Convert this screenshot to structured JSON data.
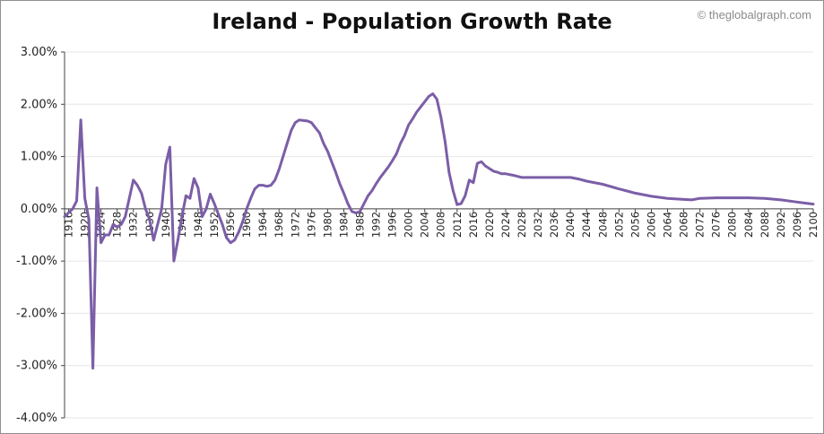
{
  "header": {
    "title": "Ireland - Population Growth Rate",
    "watermark": "© theglobalgraph.com"
  },
  "colors": {
    "line": "#7b5ea7",
    "grid": "#e6e6e6",
    "axis": "#444444",
    "frame": "#8f8f8f"
  },
  "chart_data": {
    "type": "line",
    "title": "Ireland - Population Growth Rate",
    "xlabel": "",
    "ylabel": "",
    "xlim": [
      1915,
      2100
    ],
    "ylim": [
      -4,
      3
    ],
    "grid": true,
    "y_ticks": [
      "3.00%",
      "2.00%",
      "1.00%",
      "0.00%",
      "-1.00%",
      "-2.00%",
      "-3.00%",
      "-4.00%"
    ],
    "x_ticks": [
      "1916",
      "1920",
      "1924",
      "1928",
      "1932",
      "1936",
      "1940",
      "1944",
      "1948",
      "1952",
      "1956",
      "1960",
      "1964",
      "1968",
      "1972",
      "1976",
      "1980",
      "1984",
      "1988",
      "1992",
      "1996",
      "2000",
      "2004",
      "2008",
      "2012",
      "2016",
      "2020",
      "2024",
      "2028",
      "2032",
      "2036",
      "2040",
      "2044",
      "2048",
      "2052",
      "2056",
      "2060",
      "2064",
      "2068",
      "2072",
      "2076",
      "2080",
      "2084",
      "2088",
      "2092",
      "2096",
      "2100"
    ],
    "series": [
      {
        "values": [
          [
            1915,
            -0.15
          ],
          [
            1917,
            0.0
          ],
          [
            1918,
            0.15
          ],
          [
            1919,
            1.7
          ],
          [
            1920,
            0.2
          ],
          [
            1921,
            -0.2
          ],
          [
            1922,
            -3.05
          ],
          [
            1923,
            0.4
          ],
          [
            1924,
            -0.65
          ],
          [
            1925,
            -0.5
          ],
          [
            1926,
            -0.5
          ],
          [
            1927,
            -0.3
          ],
          [
            1928,
            -0.35
          ],
          [
            1929,
            -0.3
          ],
          [
            1930,
            -0.15
          ],
          [
            1931,
            0.2
          ],
          [
            1932,
            0.55
          ],
          [
            1933,
            0.45
          ],
          [
            1934,
            0.3
          ],
          [
            1935,
            0.0
          ],
          [
            1936,
            -0.2
          ],
          [
            1937,
            -0.6
          ],
          [
            1938,
            -0.3
          ],
          [
            1939,
            0.0
          ],
          [
            1940,
            0.85
          ],
          [
            1941,
            1.18
          ],
          [
            1942,
            -1.0
          ],
          [
            1943,
            -0.6
          ],
          [
            1944,
            -0.15
          ],
          [
            1945,
            0.25
          ],
          [
            1946,
            0.2
          ],
          [
            1947,
            0.58
          ],
          [
            1948,
            0.4
          ],
          [
            1949,
            -0.15
          ],
          [
            1950,
            0.0
          ],
          [
            1951,
            0.28
          ],
          [
            1952,
            0.1
          ],
          [
            1953,
            -0.1
          ],
          [
            1954,
            -0.3
          ],
          [
            1955,
            -0.55
          ],
          [
            1956,
            -0.65
          ],
          [
            1957,
            -0.6
          ],
          [
            1958,
            -0.45
          ],
          [
            1959,
            -0.25
          ],
          [
            1960,
            0.0
          ],
          [
            1961,
            0.2
          ],
          [
            1962,
            0.38
          ],
          [
            1963,
            0.45
          ],
          [
            1964,
            0.45
          ],
          [
            1965,
            0.43
          ],
          [
            1966,
            0.45
          ],
          [
            1967,
            0.55
          ],
          [
            1968,
            0.75
          ],
          [
            1969,
            1.0
          ],
          [
            1970,
            1.25
          ],
          [
            1971,
            1.5
          ],
          [
            1972,
            1.65
          ],
          [
            1973,
            1.7
          ],
          [
            1974,
            1.69
          ],
          [
            1975,
            1.68
          ],
          [
            1976,
            1.65
          ],
          [
            1977,
            1.55
          ],
          [
            1978,
            1.45
          ],
          [
            1979,
            1.25
          ],
          [
            1980,
            1.1
          ],
          [
            1981,
            0.9
          ],
          [
            1982,
            0.7
          ],
          [
            1983,
            0.48
          ],
          [
            1984,
            0.3
          ],
          [
            1985,
            0.1
          ],
          [
            1986,
            -0.05
          ],
          [
            1987,
            -0.08
          ],
          [
            1988,
            -0.05
          ],
          [
            1989,
            0.1
          ],
          [
            1990,
            0.25
          ],
          [
            1991,
            0.35
          ],
          [
            1992,
            0.48
          ],
          [
            1993,
            0.6
          ],
          [
            1994,
            0.7
          ],
          [
            1995,
            0.8
          ],
          [
            1996,
            0.92
          ],
          [
            1997,
            1.05
          ],
          [
            1998,
            1.25
          ],
          [
            1999,
            1.4
          ],
          [
            2000,
            1.6
          ],
          [
            2001,
            1.72
          ],
          [
            2002,
            1.85
          ],
          [
            2003,
            1.95
          ],
          [
            2004,
            2.05
          ],
          [
            2005,
            2.15
          ],
          [
            2006,
            2.2
          ],
          [
            2007,
            2.1
          ],
          [
            2008,
            1.75
          ],
          [
            2009,
            1.3
          ],
          [
            2010,
            0.7
          ],
          [
            2011,
            0.35
          ],
          [
            2012,
            0.08
          ],
          [
            2013,
            0.1
          ],
          [
            2014,
            0.25
          ],
          [
            2015,
            0.55
          ],
          [
            2016,
            0.5
          ],
          [
            2017,
            0.87
          ],
          [
            2018,
            0.9
          ],
          [
            2019,
            0.82
          ],
          [
            2020,
            0.77
          ],
          [
            2021,
            0.72
          ],
          [
            2022,
            0.7
          ],
          [
            2023,
            0.67
          ],
          [
            2024,
            0.67
          ],
          [
            2026,
            0.64
          ],
          [
            2028,
            0.6
          ],
          [
            2032,
            0.6
          ],
          [
            2036,
            0.6
          ],
          [
            2040,
            0.6
          ],
          [
            2042,
            0.57
          ],
          [
            2044,
            0.53
          ],
          [
            2048,
            0.47
          ],
          [
            2052,
            0.38
          ],
          [
            2054,
            0.34
          ],
          [
            2056,
            0.3
          ],
          [
            2060,
            0.24
          ],
          [
            2064,
            0.2
          ],
          [
            2068,
            0.18
          ],
          [
            2070,
            0.17
          ],
          [
            2072,
            0.2
          ],
          [
            2076,
            0.21
          ],
          [
            2080,
            0.21
          ],
          [
            2084,
            0.21
          ],
          [
            2088,
            0.2
          ],
          [
            2092,
            0.17
          ],
          [
            2096,
            0.13
          ],
          [
            2100,
            0.09
          ]
        ]
      }
    ]
  }
}
